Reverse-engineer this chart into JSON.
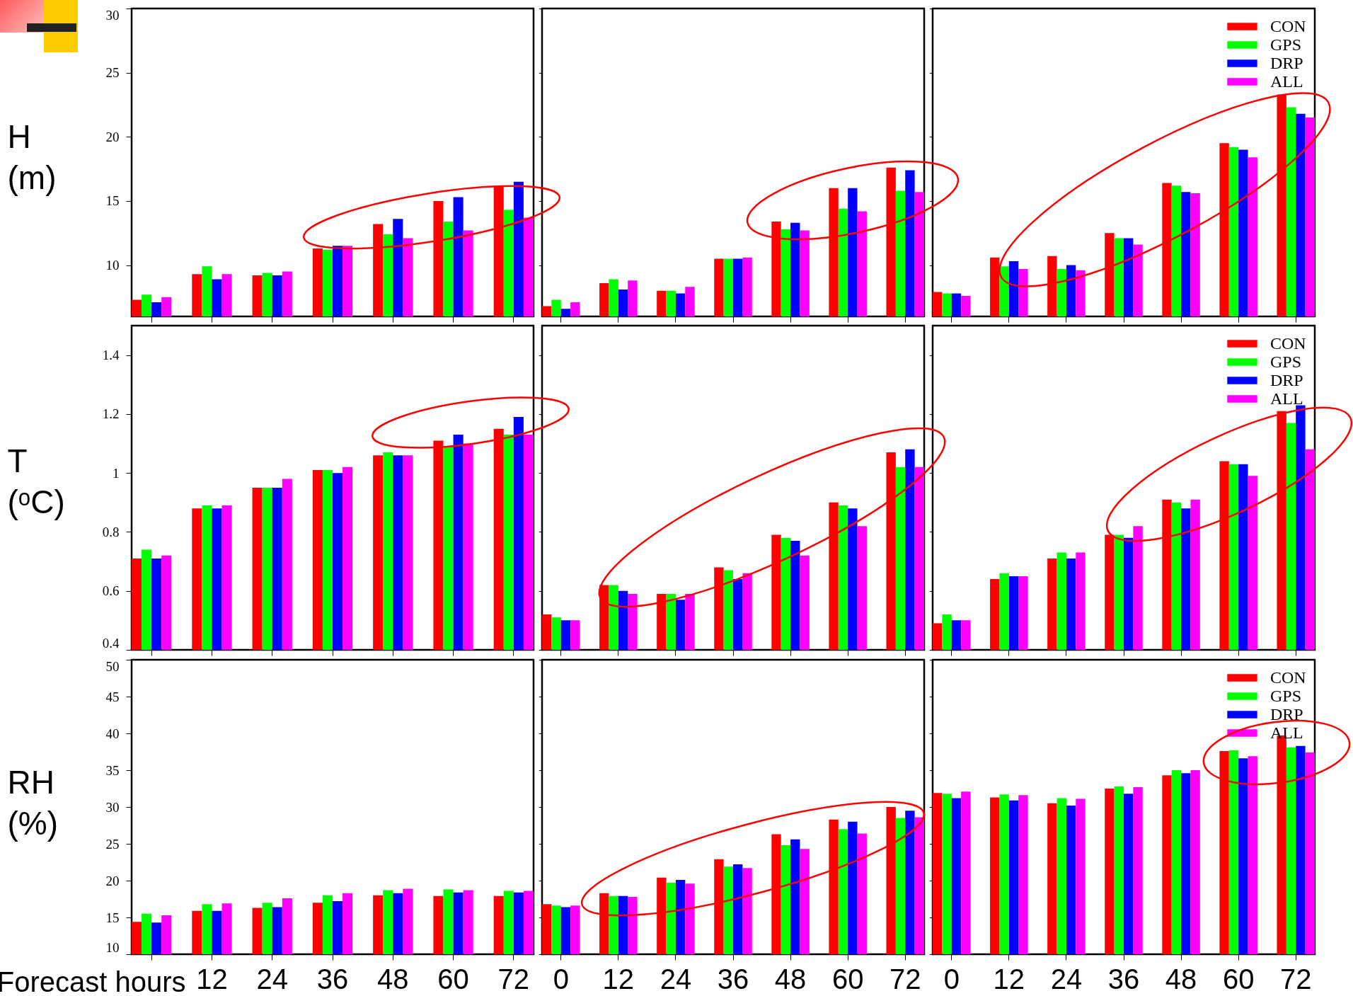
{
  "chart_data": [
    {
      "type": "bar",
      "ylabel": "H (m)",
      "categories": [
        "0",
        "12",
        "24",
        "36",
        "48",
        "60",
        "72"
      ],
      "ylim": [
        6,
        30
      ],
      "yticks": [
        10,
        15,
        20,
        25,
        30
      ],
      "tick_labels": "y",
      "legend": false,
      "series": [
        {
          "color": "#ff0000",
          "values": [
            7.3,
            9.3,
            9.2,
            11.3,
            13.2,
            15.0,
            16.2
          ]
        },
        {
          "color": "#00ff00",
          "values": [
            7.7,
            9.9,
            9.4,
            11.2,
            12.4,
            13.4,
            14.3
          ]
        },
        {
          "color": "#0000ff",
          "values": [
            7.1,
            8.9,
            9.2,
            11.5,
            13.6,
            15.3,
            16.5
          ]
        },
        {
          "color": "#ff00ff",
          "values": [
            7.5,
            9.3,
            9.5,
            11.5,
            12.1,
            12.7,
            13.7
          ]
        }
      ]
    },
    {
      "type": "bar",
      "categories": [
        "0",
        "12",
        "24",
        "36",
        "48",
        "60",
        "72"
      ],
      "ylim": [
        6,
        30
      ],
      "yticks": [
        10,
        15,
        20,
        25,
        30
      ],
      "tick_labels": false,
      "legend": false,
      "series": [
        {
          "color": "#ff0000",
          "values": [
            6.8,
            8.6,
            8.0,
            10.5,
            13.4,
            16.0,
            17.6
          ]
        },
        {
          "color": "#00ff00",
          "values": [
            7.3,
            8.9,
            8.0,
            10.5,
            12.8,
            14.4,
            15.8
          ]
        },
        {
          "color": "#0000ff",
          "values": [
            6.6,
            8.1,
            7.8,
            10.5,
            13.3,
            16.0,
            17.4
          ]
        },
        {
          "color": "#ff00ff",
          "values": [
            7.1,
            8.8,
            8.3,
            10.6,
            12.7,
            14.2,
            15.7
          ]
        }
      ]
    },
    {
      "type": "bar",
      "categories": [
        "0",
        "12",
        "24",
        "36",
        "48",
        "60",
        "72"
      ],
      "ylim": [
        6,
        30
      ],
      "yticks": [
        10,
        15,
        20,
        25,
        30
      ],
      "tick_labels": false,
      "legend": "top right",
      "series": [
        {
          "name": "CON",
          "color": "#ff0000",
          "values": [
            7.9,
            10.6,
            10.7,
            12.5,
            16.4,
            19.5,
            23.3
          ]
        },
        {
          "name": "GPS",
          "color": "#00ff00",
          "values": [
            7.8,
            9.9,
            9.7,
            12.1,
            16.2,
            19.2,
            22.3
          ]
        },
        {
          "name": "DRP",
          "color": "#0000ff",
          "values": [
            7.8,
            10.3,
            10.0,
            12.1,
            15.7,
            19.0,
            21.8
          ]
        },
        {
          "name": "ALL",
          "color": "#ff00ff",
          "values": [
            7.6,
            9.7,
            9.6,
            11.6,
            15.6,
            18.4,
            21.5
          ]
        }
      ]
    },
    {
      "type": "bar",
      "ylabel": "T (ᵒC)",
      "categories": [
        "0",
        "12",
        "24",
        "36",
        "48",
        "60",
        "72"
      ],
      "ylim": [
        0.4,
        1.5
      ],
      "yticks": [
        0.4,
        0.6,
        0.8,
        1,
        1.2,
        1.4
      ],
      "tick_labels": "y",
      "legend": false,
      "series": [
        {
          "color": "#ff0000",
          "values": [
            0.71,
            0.88,
            0.95,
            1.01,
            1.06,
            1.11,
            1.15
          ]
        },
        {
          "color": "#00ff00",
          "values": [
            0.74,
            0.89,
            0.95,
            1.01,
            1.07,
            1.09,
            1.13
          ]
        },
        {
          "color": "#0000ff",
          "values": [
            0.71,
            0.88,
            0.95,
            1.0,
            1.06,
            1.13,
            1.19
          ]
        },
        {
          "color": "#ff00ff",
          "values": [
            0.72,
            0.89,
            0.98,
            1.02,
            1.06,
            1.1,
            1.13
          ]
        }
      ]
    },
    {
      "type": "bar",
      "categories": [
        "0",
        "12",
        "24",
        "36",
        "48",
        "60",
        "72"
      ],
      "ylim": [
        0.4,
        1.5
      ],
      "yticks": [
        0.4,
        0.6,
        0.8,
        1,
        1.2,
        1.4
      ],
      "tick_labels": false,
      "legend": false,
      "series": [
        {
          "color": "#ff0000",
          "values": [
            0.52,
            0.62,
            0.59,
            0.68,
            0.79,
            0.9,
            1.07
          ]
        },
        {
          "color": "#00ff00",
          "values": [
            0.51,
            0.62,
            0.59,
            0.67,
            0.78,
            0.89,
            1.02
          ]
        },
        {
          "color": "#0000ff",
          "values": [
            0.5,
            0.6,
            0.57,
            0.64,
            0.77,
            0.88,
            1.08
          ]
        },
        {
          "color": "#ff00ff",
          "values": [
            0.5,
            0.59,
            0.59,
            0.66,
            0.72,
            0.82,
            1.02
          ]
        }
      ]
    },
    {
      "type": "bar",
      "categories": [
        "0",
        "12",
        "24",
        "36",
        "48",
        "60",
        "72"
      ],
      "ylim": [
        0.4,
        1.5
      ],
      "yticks": [
        0.4,
        0.6,
        0.8,
        1,
        1.2,
        1.4
      ],
      "tick_labels": false,
      "legend": "top right",
      "series": [
        {
          "name": "CON",
          "color": "#ff0000",
          "values": [
            0.49,
            0.64,
            0.71,
            0.79,
            0.91,
            1.04,
            1.21
          ]
        },
        {
          "name": "GPS",
          "color": "#00ff00",
          "values": [
            0.52,
            0.66,
            0.73,
            0.79,
            0.9,
            1.03,
            1.17
          ]
        },
        {
          "name": "DRP",
          "color": "#0000ff",
          "values": [
            0.5,
            0.65,
            0.71,
            0.78,
            0.88,
            1.03,
            1.23
          ]
        },
        {
          "name": "ALL",
          "color": "#ff00ff",
          "values": [
            0.5,
            0.65,
            0.73,
            0.82,
            0.91,
            0.99,
            1.08
          ]
        }
      ]
    },
    {
      "type": "bar",
      "ylabel": "RH (%)",
      "xlabel": "Forecast hours",
      "categories": [
        null,
        "12",
        "24",
        "36",
        "48",
        "60",
        "72"
      ],
      "ylim": [
        10,
        50
      ],
      "yticks": [
        10,
        15,
        20,
        25,
        30,
        35,
        40,
        45,
        50
      ],
      "legend": false,
      "series": [
        {
          "color": "#ff0000",
          "values": [
            14.4,
            15.9,
            16.3,
            17.0,
            18.0,
            17.9,
            17.9
          ]
        },
        {
          "color": "#00ff00",
          "values": [
            15.5,
            16.8,
            17.0,
            18.0,
            18.7,
            18.8,
            18.6
          ]
        },
        {
          "color": "#0000ff",
          "values": [
            14.3,
            15.9,
            16.4,
            17.2,
            18.3,
            18.4,
            18.4
          ]
        },
        {
          "color": "#ff00ff",
          "values": [
            15.3,
            16.9,
            17.6,
            18.3,
            18.9,
            18.7,
            18.6
          ]
        }
      ]
    },
    {
      "type": "bar",
      "categories": [
        "0",
        "12",
        "24",
        "36",
        "48",
        "60",
        "72"
      ],
      "ylim": [
        10,
        50
      ],
      "yticks": [
        10,
        15,
        20,
        25,
        30,
        35,
        40,
        45,
        50
      ],
      "tick_labels": "x",
      "legend": false,
      "series": [
        {
          "color": "#ff0000",
          "values": [
            16.8,
            18.3,
            20.4,
            22.9,
            26.3,
            28.3,
            30.0
          ]
        },
        {
          "color": "#00ff00",
          "values": [
            16.6,
            17.9,
            19.7,
            21.9,
            24.8,
            27.0,
            28.5
          ]
        },
        {
          "color": "#0000ff",
          "values": [
            16.4,
            17.9,
            20.1,
            22.2,
            25.6,
            28.0,
            29.5
          ]
        },
        {
          "color": "#ff00ff",
          "values": [
            16.6,
            17.8,
            19.6,
            21.7,
            24.3,
            26.4,
            28.6
          ]
        }
      ]
    },
    {
      "type": "bar",
      "categories": [
        "0",
        "12",
        "24",
        "36",
        "48",
        "60",
        "72"
      ],
      "ylim": [
        10,
        50
      ],
      "yticks": [
        10,
        15,
        20,
        25,
        30,
        35,
        40,
        45,
        50
      ],
      "tick_labels": "x",
      "legend": "top right",
      "series": [
        {
          "name": "CON",
          "color": "#ff0000",
          "values": [
            31.9,
            31.3,
            30.5,
            32.5,
            34.3,
            37.6,
            39.7
          ]
        },
        {
          "name": "GPS",
          "color": "#00ff00",
          "values": [
            31.8,
            31.7,
            31.2,
            32.8,
            35.0,
            37.7,
            38.1
          ]
        },
        {
          "name": "DRP",
          "color": "#0000ff",
          "values": [
            31.2,
            30.9,
            30.2,
            31.8,
            34.6,
            36.6,
            38.3
          ]
        },
        {
          "name": "ALL",
          "color": "#ff00ff",
          "values": [
            32.1,
            31.6,
            31.1,
            32.7,
            35.0,
            36.9,
            37.4
          ]
        }
      ]
    }
  ]
}
